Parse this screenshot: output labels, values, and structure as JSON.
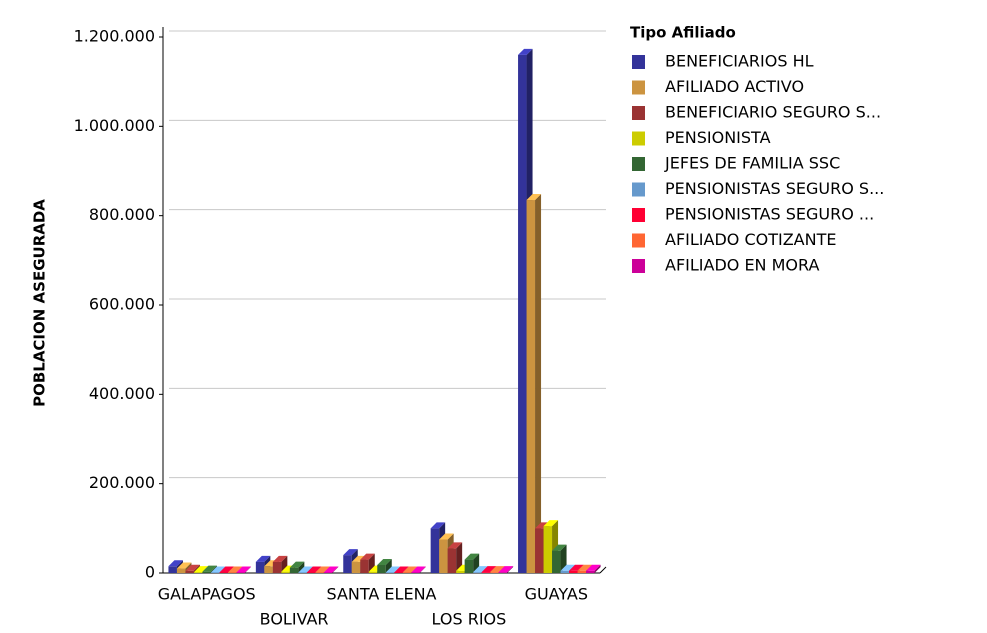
{
  "chart_data": {
    "type": "bar3d",
    "y_axis_label": "POBLACION ASEGURADA",
    "legend_title": "Tipo Afiliado",
    "legend": "right",
    "grid": true,
    "categories": [
      "GALAPAGOS",
      "BOLIVAR",
      "SANTA ELENA",
      "LOS RIOS",
      "GUAYAS"
    ],
    "ylim": [
      0,
      1200000
    ],
    "yticks": [
      0,
      {
        "value": 200000,
        "label": "200.000"
      },
      {
        "value": 400000,
        "label": "400.000"
      },
      {
        "value": 600000,
        "label": "600.000"
      },
      {
        "value": 800000,
        "label": "800.000"
      },
      {
        "value": 1000000,
        "label": "1.000.000"
      },
      {
        "value": 1200000,
        "label": "1.200.000"
      }
    ],
    "series": [
      {
        "name": "BENEFICIARIOS HL",
        "color": "#33339a",
        "values": [
          15000,
          25000,
          40000,
          100000,
          1160000
        ]
      },
      {
        "name": "AFILIADO ACTIVO",
        "color": "#cc9440",
        "values": [
          10000,
          15000,
          25000,
          75000,
          835000
        ]
      },
      {
        "name": "BENEFICIARIO SEGURO S...",
        "color": "#9a3333",
        "values": [
          5000,
          25000,
          30000,
          55000,
          100000
        ]
      },
      {
        "name": "PENSIONISTA",
        "color": "#cccc00",
        "values": [
          2000,
          3000,
          3000,
          5000,
          105000
        ]
      },
      {
        "name": "JEFES DE FAMILIA SSC",
        "color": "#336633",
        "values": [
          3000,
          12000,
          18000,
          30000,
          50000
        ]
      },
      {
        "name": "PENSIONISTAS SEGURO S...",
        "color": "#6699cc",
        "values": [
          1000,
          1000,
          1000,
          2000,
          5000
        ]
      },
      {
        "name": "PENSIONISTAS SEGURO ...",
        "color": "#ff0033",
        "values": [
          1000,
          1000,
          1000,
          2000,
          5000
        ]
      },
      {
        "name": "AFILIADO COTIZANTE",
        "color": "#ff6633",
        "values": [
          1000,
          1000,
          1000,
          2000,
          5000
        ]
      },
      {
        "name": "AFILIADO EN MORA",
        "color": "#cc0099",
        "values": [
          1000,
          1000,
          1000,
          2000,
          5000
        ]
      }
    ]
  }
}
